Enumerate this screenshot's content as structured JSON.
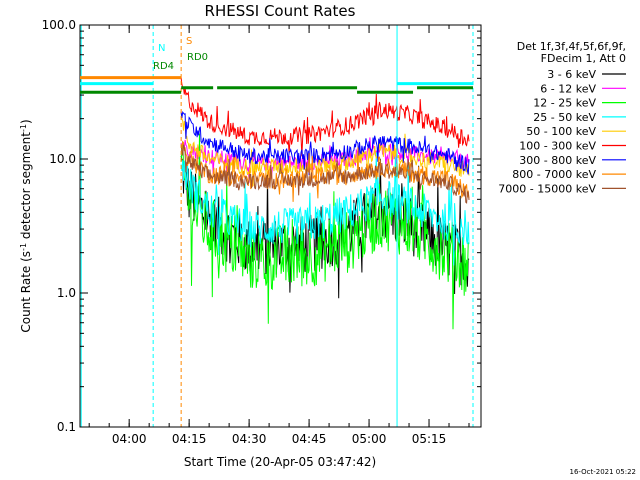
{
  "chart_data": {
    "type": "line",
    "title": "RHESSI Count Rates",
    "xlabel": "Start Time (20-Apr-05 03:47:42)",
    "ylabel_main": "Count Rate (s",
    "ylabel_sup1": "-1",
    "ylabel_mid": " detector segment",
    "ylabel_sup2": "-1",
    "ylabel_end": ")",
    "y_scale": "log",
    "xlim": [
      "03:47:42",
      "05:28:00"
    ],
    "ylim": [
      0.1,
      100.0
    ],
    "x_ticks": [
      "04:00",
      "04:15",
      "04:30",
      "04:45",
      "05:00",
      "05:15"
    ],
    "y_ticks": [
      "0.1",
      "1.0",
      "10.0",
      "100.0"
    ],
    "legend_header": [
      "Det 1f,3f,4f,5f,6f,9f,",
      "FDecim 1, Att 0"
    ],
    "legend_position": "right",
    "footer_date": "16-Oct-2021 05:22",
    "series": [
      {
        "name": "3 - 6 keV",
        "color": "#000000",
        "x": [
          "04:13",
          "04:15",
          "04:20",
          "04:30",
          "04:45",
          "04:55",
          "05:03",
          "05:10",
          "05:20",
          "05:25"
        ],
        "y": [
          9.0,
          5.5,
          3.5,
          2.2,
          2.3,
          2.9,
          4.2,
          3.3,
          2.1,
          1.8
        ]
      },
      {
        "name": "6 - 12 keV",
        "color": "#ff00ff",
        "x": [
          "04:13",
          "04:15",
          "04:20",
          "04:30",
          "04:45",
          "04:55",
          "05:03",
          "05:10",
          "05:20",
          "05:25"
        ],
        "y": [
          13.0,
          12.0,
          10.5,
          9.3,
          9.4,
          10.0,
          11.8,
          11.0,
          10.0,
          9.5
        ]
      },
      {
        "name": "12 - 25 keV",
        "color": "#00ff00",
        "x": [
          "04:13",
          "04:15",
          "04:20",
          "04:30",
          "04:45",
          "04:55",
          "05:03",
          "05:10",
          "05:20",
          "05:25"
        ],
        "y": [
          8.5,
          5.0,
          3.0,
          1.8,
          1.9,
          2.5,
          3.8,
          3.2,
          2.0,
          1.6
        ]
      },
      {
        "name": "25 - 50 keV",
        "color": "#00ffff",
        "x": [
          "04:13",
          "04:15",
          "04:20",
          "04:30",
          "04:45",
          "04:55",
          "05:03",
          "05:10",
          "05:20",
          "05:25"
        ],
        "y": [
          10.0,
          6.5,
          4.2,
          3.0,
          3.2,
          4.0,
          5.3,
          4.5,
          3.3,
          3.0
        ]
      },
      {
        "name": "50 - 100 keV",
        "color": "#ffcc00",
        "x": [
          "04:13",
          "04:15",
          "04:20",
          "04:30",
          "04:45",
          "04:55",
          "05:03",
          "05:10",
          "05:20",
          "05:25"
        ],
        "y": [
          20.0,
          13.0,
          10.0,
          8.7,
          8.8,
          9.5,
          11.5,
          10.5,
          9.0,
          8.0
        ]
      },
      {
        "name": "100 - 300 keV",
        "color": "#ff0000",
        "x": [
          "04:13",
          "04:15",
          "04:20",
          "04:30",
          "04:45",
          "04:55",
          "05:03",
          "05:10",
          "05:20",
          "05:25"
        ],
        "y": [
          35.0,
          27.0,
          19.0,
          14.5,
          15.0,
          18.0,
          23.5,
          21.5,
          16.5,
          14.0
        ]
      },
      {
        "name": "300 - 800 keV",
        "color": "#0000ff",
        "x": [
          "04:13",
          "04:15",
          "04:20",
          "04:30",
          "04:45",
          "04:55",
          "05:03",
          "05:10",
          "05:20",
          "05:25"
        ],
        "y": [
          22.0,
          18.0,
          13.5,
          10.5,
          10.5,
          11.5,
          13.5,
          12.5,
          10.5,
          9.0
        ]
      },
      {
        "name": "800 - 7000 keV",
        "color": "#ff8800",
        "x": [
          "04:13",
          "04:15",
          "04:20",
          "04:30",
          "04:45",
          "04:55",
          "05:03",
          "05:10",
          "05:20",
          "05:25"
        ],
        "y": [
          13.0,
          10.0,
          7.8,
          7.0,
          7.2,
          7.8,
          8.8,
          8.0,
          7.0,
          5.5
        ]
      },
      {
        "name": "7000 - 15000 keV",
        "color": "#a0522d",
        "x": [
          "04:13",
          "04:15",
          "04:20",
          "04:30",
          "04:45",
          "04:55",
          "05:03",
          "05:10",
          "05:20",
          "05:25"
        ],
        "y": [
          12.0,
          9.5,
          7.5,
          6.8,
          7.0,
          7.5,
          8.4,
          7.6,
          6.6,
          5.2
        ]
      }
    ],
    "vertical_markers": [
      {
        "x": "03:48:00",
        "color": "#00ffff",
        "style": "solid"
      },
      {
        "x": "04:06:00",
        "color": "#00ffff",
        "style": "dashed"
      },
      {
        "x": "04:13:00",
        "color": "#ff8800",
        "style": "dashed"
      },
      {
        "x": "05:07:00",
        "color": "#00ffff",
        "style": "solid"
      },
      {
        "x": "05:26:00",
        "color": "#00ffff",
        "style": "dashed"
      }
    ],
    "flag_bars": [
      {
        "label": "S",
        "color": "#ff8800",
        "segments": [
          [
            "03:47:42",
            "04:13:00"
          ]
        ],
        "level": 40.5
      },
      {
        "label": "N",
        "color": "#00ffff",
        "segments": [
          [
            "03:47:42",
            "04:06:00"
          ],
          [
            "05:07:00",
            "05:26:00"
          ]
        ],
        "level": 36.5
      },
      {
        "label": "RD0",
        "color": "#008800",
        "segments": [
          [
            "04:13:00",
            "04:21:00"
          ],
          [
            "04:22:00",
            "04:57:00"
          ]
        ],
        "level": 34.0
      },
      {
        "label": "",
        "color": "#008800",
        "segments": [
          [
            "05:12:00",
            "05:26:00"
          ]
        ],
        "level": 34.0
      },
      {
        "label": "RD4",
        "color": "#008800",
        "segments": [
          [
            "03:47:42",
            "04:13:00"
          ],
          [
            "04:57:00",
            "05:11:00"
          ]
        ],
        "level": 31.5
      }
    ]
  }
}
